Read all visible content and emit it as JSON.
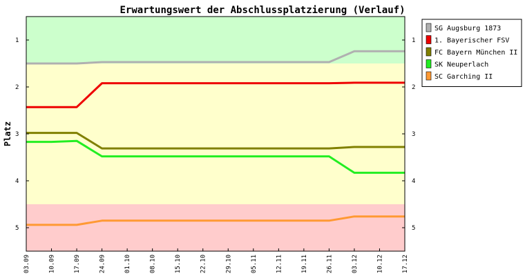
{
  "chart_data": {
    "type": "line",
    "title": "Erwartungswert der Abschlussplatzierung (Verlauf)",
    "ylabel": "Platz",
    "xlabel": "",
    "ylim": [
      0.5,
      5.5
    ],
    "y_inverted": true,
    "y_ticks": [
      "1",
      "2",
      "3",
      "4",
      "5"
    ],
    "grid": false,
    "legend_position": "right",
    "categories": [
      "03.09",
      "10.09",
      "17.09",
      "24.09",
      "01.10",
      "08.10",
      "15.10",
      "22.10",
      "29.10",
      "05.11",
      "12.11",
      "19.11",
      "26.11",
      "03.12",
      "10.12",
      "17.12"
    ],
    "zones": [
      {
        "from": 0.5,
        "to": 1.5,
        "color": "#ccffcc"
      },
      {
        "from": 1.5,
        "to": 4.5,
        "color": "#ffffcc"
      },
      {
        "from": 4.5,
        "to": 5.5,
        "color": "#ffcccc"
      }
    ],
    "series": [
      {
        "name": "SG Augsburg 1873",
        "color": "#b0b0b0",
        "values": [
          1.5,
          1.5,
          1.5,
          1.47,
          1.47,
          1.47,
          1.47,
          1.47,
          1.47,
          1.47,
          1.47,
          1.47,
          1.47,
          1.24,
          1.24,
          1.24
        ]
      },
      {
        "name": "1. Bayerischer FSV",
        "color": "#ee0000",
        "values": [
          2.43,
          2.43,
          2.43,
          1.92,
          1.92,
          1.92,
          1.92,
          1.92,
          1.92,
          1.92,
          1.92,
          1.92,
          1.92,
          1.91,
          1.91,
          1.91
        ]
      },
      {
        "name": "FC Bayern München II",
        "color": "#808000",
        "values": [
          2.98,
          2.98,
          2.98,
          3.31,
          3.31,
          3.31,
          3.31,
          3.31,
          3.31,
          3.31,
          3.31,
          3.31,
          3.31,
          3.28,
          3.28,
          3.28
        ]
      },
      {
        "name": "SK Neuperlach",
        "color": "#22ee22",
        "values": [
          3.17,
          3.17,
          3.15,
          3.48,
          3.48,
          3.48,
          3.48,
          3.48,
          3.48,
          3.48,
          3.48,
          3.48,
          3.48,
          3.83,
          3.83,
          3.83
        ]
      },
      {
        "name": "SC Garching II",
        "color": "#ff9933",
        "values": [
          4.94,
          4.94,
          4.94,
          4.85,
          4.85,
          4.85,
          4.85,
          4.85,
          4.85,
          4.85,
          4.85,
          4.85,
          4.85,
          4.76,
          4.76,
          4.76
        ]
      }
    ]
  }
}
